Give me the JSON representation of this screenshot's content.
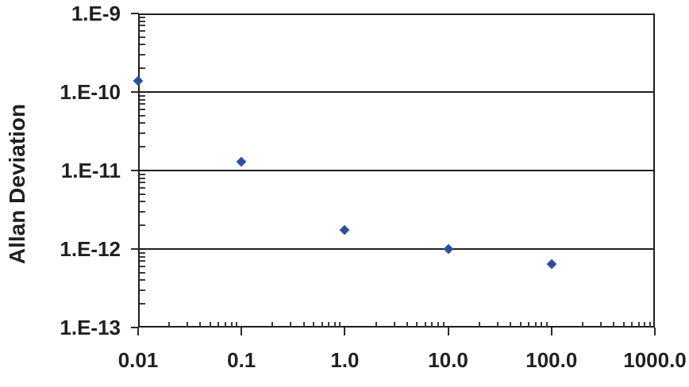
{
  "chart_data": {
    "type": "scatter",
    "title": "",
    "xlabel": "",
    "ylabel": "Allan Deviation",
    "x_scale": "log",
    "y_scale": "log",
    "xlim": [
      0.01,
      1000.0
    ],
    "ylim": [
      1e-13,
      1e-09
    ],
    "x_tick_labels": [
      "0.01",
      "0.1",
      "1.0",
      "10.0",
      "100.0",
      "1000.0"
    ],
    "y_tick_labels": [
      "1.E-9",
      "1.E-10",
      "1.E-11",
      "1.E-12",
      "1.E-13"
    ],
    "grid": "horizontal-decade-lines",
    "legend": "none",
    "series": [
      {
        "name": "allan-deviation",
        "marker": "diamond",
        "color": "#2b509e",
        "points": [
          {
            "x": 0.01,
            "y": 1.4e-10
          },
          {
            "x": 0.1,
            "y": 1.3e-11
          },
          {
            "x": 1.0,
            "y": 1.75e-12
          },
          {
            "x": 10.0,
            "y": 1e-12
          },
          {
            "x": 100.0,
            "y": 6.5e-13
          }
        ]
      }
    ],
    "colors": {
      "marker": "#2b509e",
      "text": "#231f20",
      "axis": "#1f1f1f",
      "background": "#ffffff"
    }
  }
}
